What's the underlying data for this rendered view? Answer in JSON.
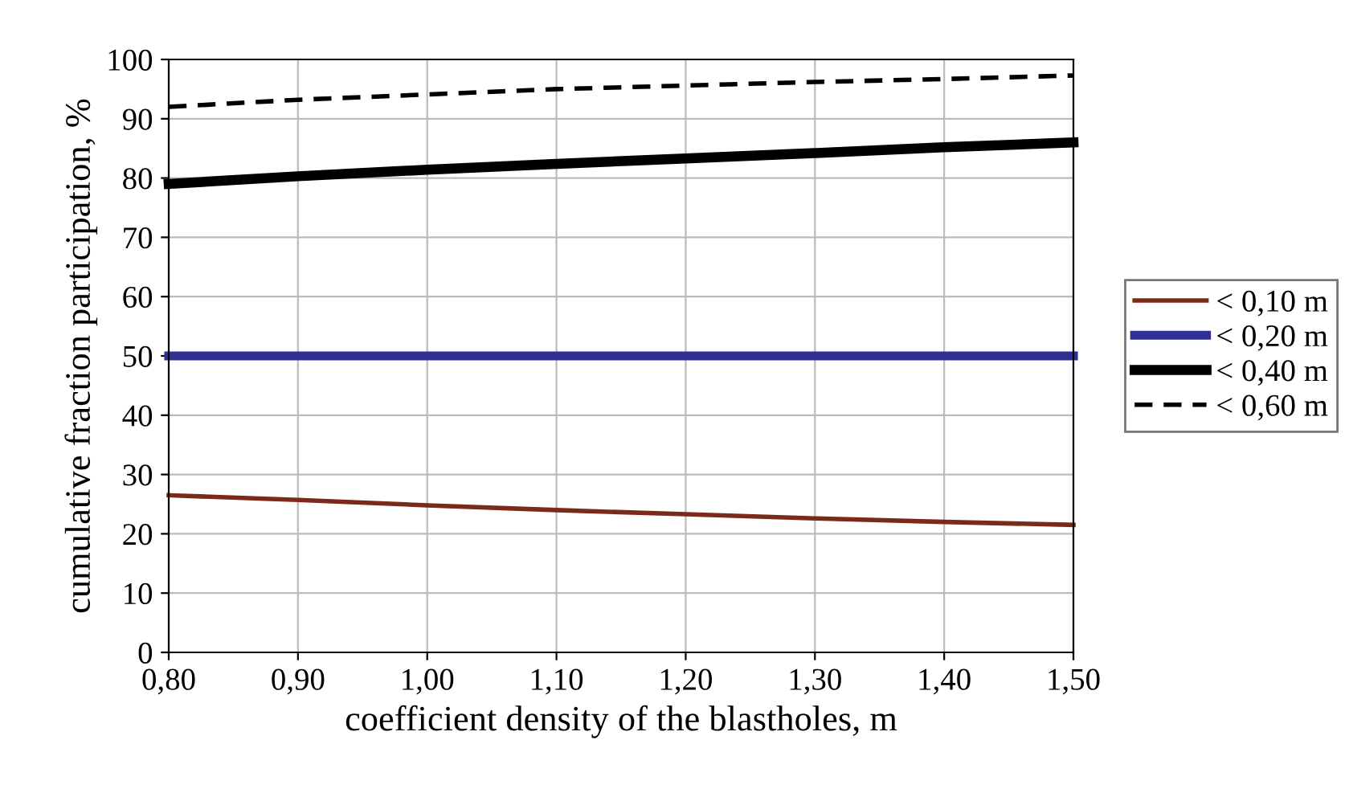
{
  "chart_data": {
    "type": "line",
    "xlabel": "coefficient density of the blastholes, m",
    "ylabel": "cumulative fraction participation, %",
    "x": [
      0.8,
      0.9,
      1.0,
      1.1,
      1.2,
      1.3,
      1.4,
      1.5
    ],
    "series": [
      {
        "name": "< 0,10 m",
        "color": "#7b2a1a",
        "values": [
          26.5,
          25.7,
          24.8,
          24.0,
          23.3,
          22.6,
          22.0,
          21.5
        ],
        "line_style": "solid"
      },
      {
        "name": "< 0,20 m",
        "color": "#2e3192",
        "values": [
          50,
          50,
          50,
          50,
          50,
          50,
          50,
          50
        ],
        "line_style": "solid"
      },
      {
        "name": "< 0,40 m",
        "color": "#000000",
        "values": [
          79,
          80.3,
          81.4,
          82.4,
          83.3,
          84.2,
          85.2,
          86
        ],
        "line_style": "solid"
      },
      {
        "name": "< 0,60 m",
        "color": "#000000",
        "values": [
          92,
          93.2,
          94.1,
          95,
          95.6,
          96.2,
          96.7,
          97.3
        ],
        "line_style": "dashed"
      }
    ],
    "xlim": [
      0.8,
      1.5
    ],
    "xticks": [
      {
        "value": 0.8,
        "label": "0,80"
      },
      {
        "value": 0.9,
        "label": "0,90"
      },
      {
        "value": 1.0,
        "label": "1,00"
      },
      {
        "value": 1.1,
        "label": "1,10"
      },
      {
        "value": 1.2,
        "label": "1,20"
      },
      {
        "value": 1.3,
        "label": "1,30"
      },
      {
        "value": 1.4,
        "label": "1,40"
      },
      {
        "value": 1.5,
        "label": "1,50"
      }
    ],
    "ylim": [
      0,
      100
    ],
    "yticks": [
      0,
      10,
      20,
      30,
      40,
      50,
      60,
      70,
      80,
      90,
      100
    ],
    "grid": true,
    "legend": "right",
    "marker": "none"
  }
}
